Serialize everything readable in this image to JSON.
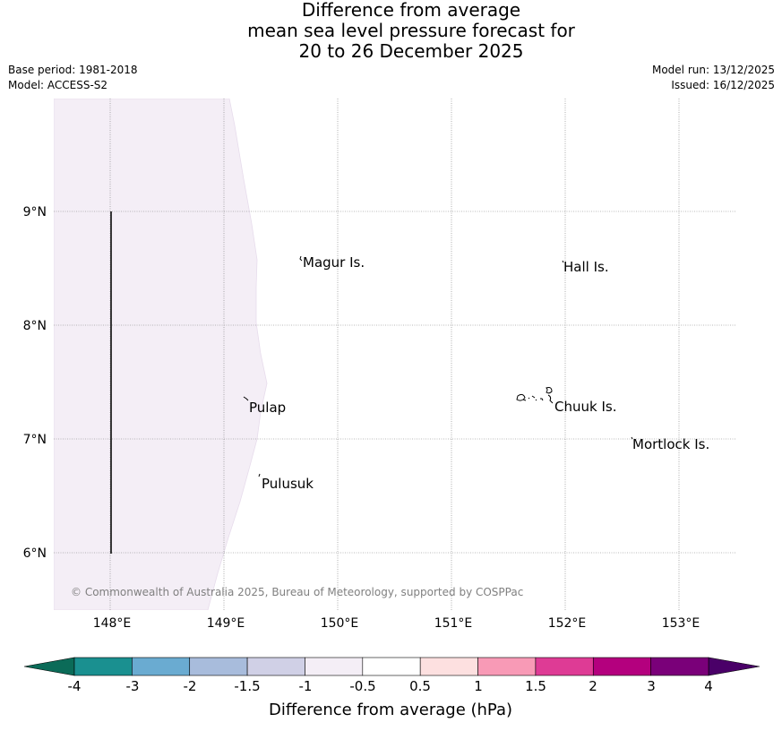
{
  "title": {
    "line1": "Difference from average",
    "line2": "mean sea level pressure forecast for",
    "line3": "20 to 26 December 2025"
  },
  "meta": {
    "base_period": "Base period: 1981-2018",
    "model": "Model: ACCESS-S2",
    "model_run": "Model run: 13/12/2025",
    "issued": "Issued: 16/12/2025"
  },
  "map": {
    "lat_labels": [
      "9°N",
      "8°N",
      "7°N",
      "6°N"
    ],
    "lon_labels": [
      "148°E",
      "149°E",
      "150°E",
      "151°E",
      "152°E",
      "153°E"
    ],
    "places": [
      "Magur Is.",
      "Hall Is.",
      "Pulap",
      "Chuuk Is.",
      "Mortlock Is.",
      "Pulusuk"
    ],
    "credit": "© Commonwealth of Australia 2025, Bureau of Meteorology, supported by COSPPac"
  },
  "legend": {
    "title": "Difference from average (hPa)",
    "ticks": [
      "-4",
      "-3",
      "-2",
      "-1.5",
      "-1",
      "-0.5",
      "0.5",
      "1",
      "1.5",
      "2",
      "3",
      "4"
    ],
    "colors": [
      "#1a9090",
      "#6aabd1",
      "#a8bcdc",
      "#d0d0e6",
      "#f4eef6",
      "#ffffff",
      "#fde0e0",
      "#f89ab6",
      "#de3b95",
      "#b4007e",
      "#7a0079"
    ],
    "under_color": "#0b6b58",
    "over_color": "#4a0068"
  }
}
